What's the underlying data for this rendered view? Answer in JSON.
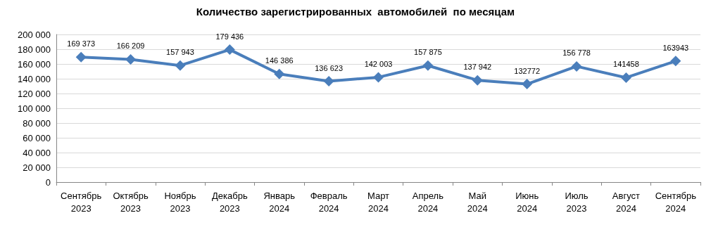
{
  "chart_data": {
    "type": "line",
    "title": "Количество зарегистрированных  автомобилей  по месяцам",
    "categories": [
      "Сентябрь 2023",
      "Октябрь 2023",
      "Ноябрь 2023",
      "Декабрь 2023",
      "Январь 2024",
      "Февраль 2024",
      "Март 2024",
      "Апрель 2024",
      "Май 2024",
      "Июнь 2024",
      "Июль 2023",
      "Август 2024",
      "Сентябрь 2024"
    ],
    "series": [
      {
        "color": "#4a7ebb",
        "values": [
          169373,
          166209,
          157943,
          179436,
          146386,
          136623,
          142003,
          157875,
          137942,
          132772,
          156778,
          141458,
          163943
        ],
        "value_labels": [
          "169 373",
          "166 209",
          "157 943",
          "179 436",
          "146 386",
          "136 623",
          "142 003",
          "157 875",
          "137 942",
          "132772",
          "156 778",
          "141458",
          "163943"
        ]
      }
    ],
    "ylim": [
      0,
      200000
    ],
    "yticks": [
      {
        "value": 0,
        "label": "0"
      },
      {
        "value": 20000,
        "label": "20 000"
      },
      {
        "value": 40000,
        "label": "40 000"
      },
      {
        "value": 60000,
        "label": "60 000"
      },
      {
        "value": 80000,
        "label": "80 000"
      },
      {
        "value": 100000,
        "label": "100 000"
      },
      {
        "value": 120000,
        "label": "120 000"
      },
      {
        "value": 140000,
        "label": "140 000"
      },
      {
        "value": 160000,
        "label": "160 000"
      },
      {
        "value": 180000,
        "label": "180 000"
      },
      {
        "value": 200000,
        "label": "200 000"
      }
    ],
    "grid": "y",
    "marker": "diamond",
    "line_style": "solid"
  }
}
